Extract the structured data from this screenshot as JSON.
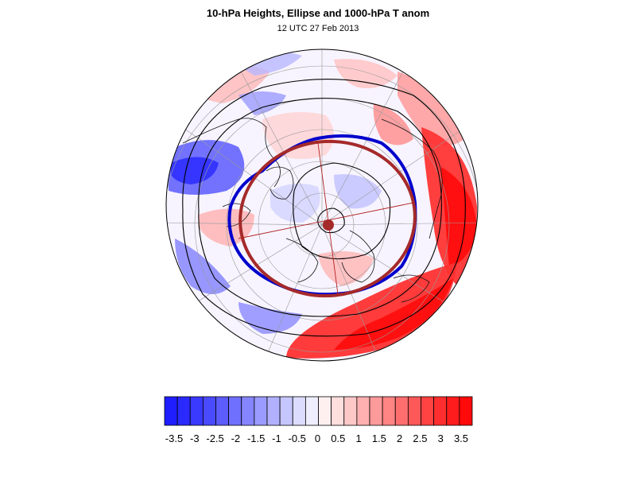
{
  "title": "10-hPa Heights, Ellipse and 1000-hPa T anom",
  "subtitle": "12 UTC 27 Feb 2013",
  "colorbar": {
    "colors": [
      "#1e1eff",
      "#2a2aff",
      "#3a3aff",
      "#4a4aff",
      "#5c5cff",
      "#7070ff",
      "#8585ff",
      "#9a9aff",
      "#b0b0ff",
      "#c6c6ff",
      "#dcdcff",
      "#eeeeff",
      "#fff0f0",
      "#ffdede",
      "#ffc8c8",
      "#ffb0b0",
      "#ff9a9a",
      "#ff8484",
      "#ff6e6e",
      "#ff5858",
      "#ff4242",
      "#ff2e2e",
      "#ff1c1c",
      "#ff0a0a"
    ],
    "labels": [
      "-3.5",
      "-3",
      "-2.5",
      "-2",
      "-1.5",
      "-1",
      "-0.5",
      "0",
      "0.5",
      "1",
      "1.5",
      "2",
      "2.5",
      "3",
      "3.5"
    ]
  },
  "map": {
    "ellipse_color": "#a52a2a",
    "contour_highlight_color": "#0000cc"
  }
}
